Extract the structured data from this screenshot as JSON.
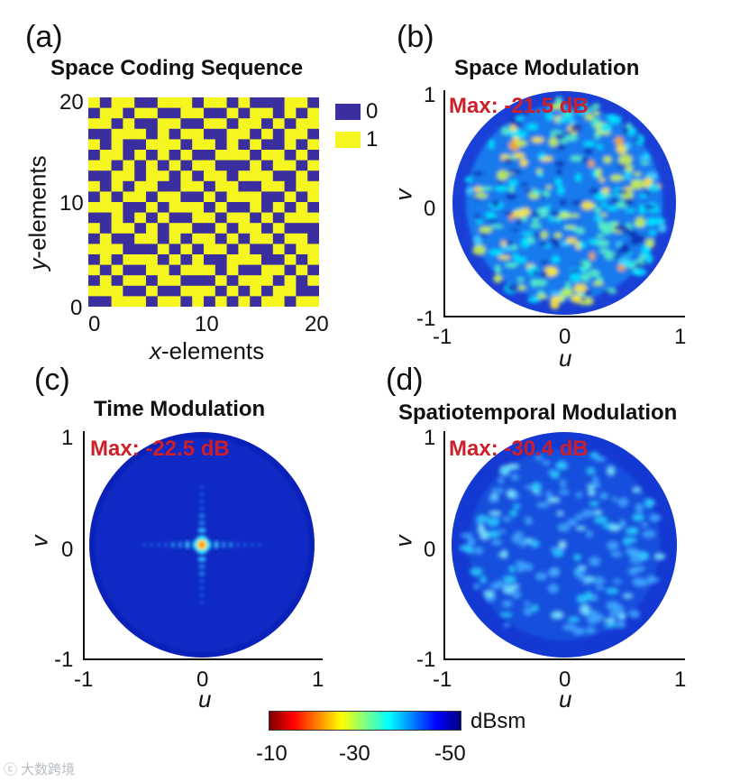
{
  "panels": [
    {
      "label": "(a)",
      "title": "Space Coding Sequence",
      "xlabel_italic": "x",
      "xlabel_rest": "-elements",
      "ylabel_italic": "y",
      "ylabel_rest": "-elements",
      "xticks": [
        "0",
        "10",
        "20"
      ],
      "yticks": [
        "20",
        "10",
        "0"
      ],
      "legend": [
        {
          "label": "0",
          "color": "#3b2fa0"
        },
        {
          "label": "1",
          "color": "#f5f51f"
        }
      ]
    },
    {
      "label": "(b)",
      "title": "Space Modulation",
      "max_text": "Max: -21.5 dB",
      "xlabel": "u",
      "ylabel": "v",
      "xticks": [
        "-1",
        "0",
        "1"
      ],
      "yticks": [
        "1",
        "0",
        "-1"
      ]
    },
    {
      "label": "(c)",
      "title": "Time Modulation",
      "max_text": "Max: -22.5 dB",
      "xlabel": "u",
      "ylabel": "v",
      "xticks": [
        "-1",
        "0",
        "1"
      ],
      "yticks": [
        "1",
        "0",
        "-1"
      ]
    },
    {
      "label": "(d)",
      "title": "Spatiotemporal Modulation",
      "max_text": "Max: -30.4 dB",
      "xlabel": "u",
      "ylabel": "v",
      "xticks": [
        "-1",
        "0",
        "1"
      ],
      "yticks": [
        "1",
        "0",
        "-1"
      ]
    }
  ],
  "colorbar": {
    "unit": "dBsm",
    "ticks": [
      "-10",
      "-30",
      "-50"
    ],
    "colors": [
      "#7f0000",
      "#ff0000",
      "#ff8000",
      "#ffff00",
      "#80ff80",
      "#00ffff",
      "#0080ff",
      "#0000ff",
      "#00007f"
    ]
  },
  "watermark": "大数跨境",
  "chart_data": [
    {
      "type": "heatmap",
      "title": "Space Coding Sequence",
      "xlabel": "x-elements",
      "ylabel": "y-elements",
      "xlim": [
        0,
        20
      ],
      "ylim": [
        0,
        20
      ],
      "categories_legend": [
        "0",
        "1"
      ],
      "rows": 20,
      "cols": 20,
      "values": [
        "10110011101101000110",
        "01101100110010110101",
        "11010011001101101011",
        "00111010110011010110",
        "10100111011010100101",
        "01101010100111011010",
        "11010101011000101101",
        "00110110101101110010",
        "10101100110110011011",
        "01011011001011100101",
        "11100101110100101010",
        "00101010011011010111",
        "10110101100101101000",
        "01001101011010110110",
        "11100010101101001011",
        "01011101010011100101",
        "10100110111010011010",
        "01011011000101110101",
        "11100100111010101100",
        "00111011010101011011"
      ]
    },
    {
      "type": "heatmap",
      "title": "Space Modulation",
      "xlabel": "u",
      "ylabel": "v",
      "xlim": [
        -1,
        1
      ],
      "ylim": [
        -1,
        1
      ],
      "max_db": -21.5,
      "colorbar_unit": "dBsm",
      "clim": [
        -50,
        -10
      ]
    },
    {
      "type": "heatmap",
      "title": "Time Modulation",
      "xlabel": "u",
      "ylabel": "v",
      "xlim": [
        -1,
        1
      ],
      "ylim": [
        -1,
        1
      ],
      "max_db": -22.5,
      "colorbar_unit": "dBsm",
      "clim": [
        -50,
        -10
      ]
    },
    {
      "type": "heatmap",
      "title": "Spatiotemporal Modulation",
      "xlabel": "u",
      "ylabel": "v",
      "xlim": [
        -1,
        1
      ],
      "ylim": [
        -1,
        1
      ],
      "max_db": -30.4,
      "colorbar_unit": "dBsm",
      "clim": [
        -50,
        -10
      ]
    }
  ]
}
